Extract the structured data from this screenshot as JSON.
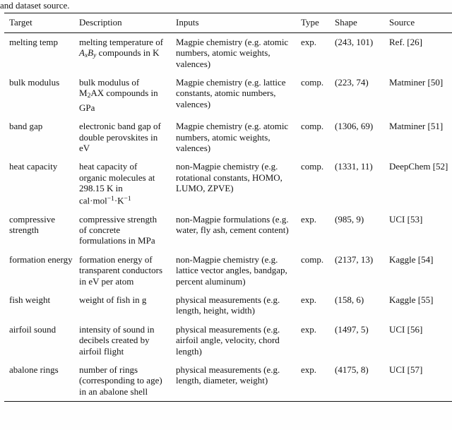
{
  "caption_tail": "and dataset source.",
  "table": {
    "headers": [
      "Target",
      "Description",
      "Inputs",
      "Type",
      "Shape",
      "Source"
    ],
    "rows": [
      {
        "target": "melting temp",
        "description": [
          {
            "t": "melting temperature of "
          },
          {
            "t": "A",
            "s": "mi"
          },
          {
            "t": "x",
            "s": "msub"
          },
          {
            "t": "B",
            "s": "mi"
          },
          {
            "t": "y",
            "s": "msub"
          },
          {
            "t": " compounds in K"
          }
        ],
        "inputs": "Magpie chemistry (e.g. atomic numbers, atomic weights, valences)",
        "type": "exp.",
        "shape": "(243, 101)",
        "source": "Ref. [26]"
      },
      {
        "target": "bulk modulus",
        "description": [
          {
            "t": "bulk modulus of M"
          },
          {
            "t": "2",
            "s": "sub"
          },
          {
            "t": "AX compounds in GPa"
          }
        ],
        "inputs": "Magpie chemistry (e.g. lattice constants, atomic numbers, valences)",
        "type": "comp.",
        "shape": "(223, 74)",
        "source": "Matminer [50]"
      },
      {
        "target": "band gap",
        "description": [
          {
            "t": "electronic band gap of double perovskites in eV"
          }
        ],
        "inputs": "Magpie chemistry (e.g. atomic numbers, atomic weights, valences)",
        "type": "comp.",
        "shape": "(1306, 69)",
        "source": "Matminer [51]"
      },
      {
        "target": "heat capacity",
        "description": [
          {
            "t": "heat capacity of organic molecules at 298.15 K in cal·mol"
          },
          {
            "t": "−1",
            "s": "sup"
          },
          {
            "t": "·K"
          },
          {
            "t": "−1",
            "s": "sup"
          }
        ],
        "inputs": "non-Magpie chemistry (e.g. rotational constants, HOMO, LUMO, ZPVE)",
        "type": "comp.",
        "shape": "(1331, 11)",
        "source": "DeepChem [52]"
      },
      {
        "target": "compressive strength",
        "description": [
          {
            "t": "compressive strength of concrete formulations in MPa"
          }
        ],
        "inputs": "non-Magpie formulations (e.g. water, fly ash, cement content)",
        "type": "exp.",
        "shape": "(985, 9)",
        "source": "UCI [53]"
      },
      {
        "target": "formation energy",
        "description": [
          {
            "t": "formation energy of transparent conductors in eV per atom"
          }
        ],
        "inputs": "non-Magpie chemistry (e.g. lattice vector angles, bandgap, percent aluminum)",
        "type": "comp.",
        "shape": "(2137, 13)",
        "source": "Kaggle [54]"
      },
      {
        "target": "fish weight",
        "description": [
          {
            "t": "weight of fish in g"
          }
        ],
        "inputs": "physical measurements (e.g. length, height, width)",
        "type": "exp.",
        "shape": "(158, 6)",
        "source": "Kaggle [55]"
      },
      {
        "target": "airfoil sound",
        "description": [
          {
            "t": "intensity of sound in decibels created by airfoil flight"
          }
        ],
        "inputs": "physical measurements (e.g. airfoil angle, velocity, chord length)",
        "type": "exp.",
        "shape": "(1497, 5)",
        "source": "UCI [56]"
      },
      {
        "target": "abalone rings",
        "description": [
          {
            "t": "number of rings (corresponding to age) in an abalone shell"
          }
        ],
        "inputs": "physical measurements (e.g. length, diameter, weight)",
        "type": "exp.",
        "shape": "(4175, 8)",
        "source": "UCI [57]"
      }
    ]
  }
}
